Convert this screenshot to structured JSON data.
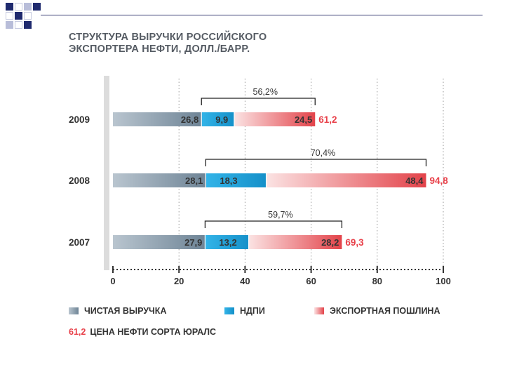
{
  "title_line1": "СТРУКТУРА ВЫРУЧКИ РОССИЙСКОГО",
  "title_line2": "ЭКСПОРТЕРА НЕФТИ, ДОЛЛ./БАРР.",
  "colors": {
    "net_revenue": "#7e93a4",
    "ndpi": "#1aa0d9",
    "export_duty": "#e54e53",
    "price": "#e8414a",
    "axis": "#d9d9d9",
    "text": "#333333"
  },
  "legend": {
    "net_revenue": "ЧИСТАЯ ВЫРУЧКА",
    "ndpi": "НДПИ",
    "export_duty": "ЭКСПОРТНАЯ ПОШЛИНА",
    "price_value": "61,2",
    "price_label": "ЦЕНА НЕФТИ СОРТА ЮРАЛС"
  },
  "chart_data": {
    "type": "bar",
    "orientation": "horizontal",
    "stacked": true,
    "categories": [
      "2009",
      "2008",
      "2007"
    ],
    "series": [
      {
        "name": "ЧИСТАЯ ВЫРУЧКА",
        "values": [
          26.8,
          28.1,
          27.9
        ],
        "labels": [
          "26,8",
          "28,1",
          "27,9"
        ]
      },
      {
        "name": "НДПИ",
        "values": [
          9.9,
          18.3,
          13.2
        ],
        "labels": [
          "9,9",
          "18,3",
          "13,2"
        ]
      },
      {
        "name": "ЭКСПОРТНАЯ ПОШЛИНА",
        "values": [
          24.5,
          48.4,
          28.2
        ],
        "labels": [
          "24,5",
          "48,4",
          "28,2"
        ]
      }
    ],
    "totals": [
      61.2,
      94.8,
      69.3
    ],
    "total_labels": [
      "61,2",
      "94,8",
      "69,3"
    ],
    "tax_share_labels": [
      "56,2%",
      "70,4%",
      "59,7%"
    ],
    "x_ticks": [
      "0",
      "20",
      "40",
      "60",
      "80",
      "100"
    ],
    "xlim": [
      0,
      100
    ],
    "grid": true
  }
}
